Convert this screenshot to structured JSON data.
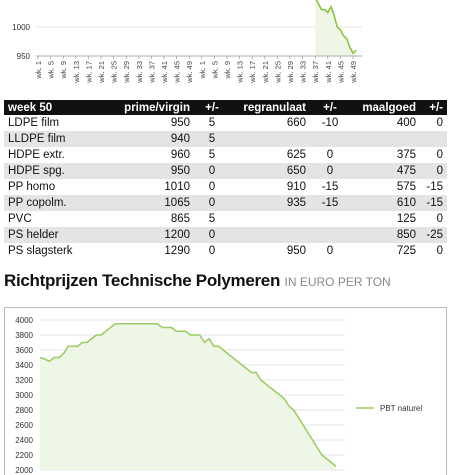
{
  "chart_data": [
    {
      "type": "area",
      "color": "#8cc63f",
      "fill": "#eef6e6",
      "ylim": [
        950,
        1050
      ],
      "yticks": [
        950,
        1000
      ],
      "xlim": [
        1,
        104
      ],
      "xticks": [
        {
          "value": 1,
          "label": "wk. 1"
        },
        {
          "value": 5,
          "label": "wk. 5"
        },
        {
          "value": 9,
          "label": "wk. 9"
        },
        {
          "value": 13,
          "label": "wk. 13"
        },
        {
          "value": 17,
          "label": "wk. 17"
        },
        {
          "value": 21,
          "label": "wk. 21"
        },
        {
          "value": 25,
          "label": "wk. 25"
        },
        {
          "value": 29,
          "label": "wk. 29"
        },
        {
          "value": 33,
          "label": "wk. 33"
        },
        {
          "value": 37,
          "label": "wk. 37"
        },
        {
          "value": 41,
          "label": "wk. 41"
        },
        {
          "value": 45,
          "label": "wk. 45"
        },
        {
          "value": 49,
          "label": "wk. 49"
        },
        {
          "value": 53,
          "label": "wk. 1"
        },
        {
          "value": 57,
          "label": "wk. 5"
        },
        {
          "value": 61,
          "label": "wk. 9"
        },
        {
          "value": 65,
          "label": "wk. 13"
        },
        {
          "value": 69,
          "label": "wk. 17"
        },
        {
          "value": 73,
          "label": "wk. 21"
        },
        {
          "value": 77,
          "label": "wk. 25"
        },
        {
          "value": 81,
          "label": "wk. 29"
        },
        {
          "value": 85,
          "label": "wk. 33"
        },
        {
          "value": 89,
          "label": "wk. 37"
        },
        {
          "value": 93,
          "label": "wk. 41"
        },
        {
          "value": 97,
          "label": "wk. 45"
        },
        {
          "value": 101,
          "label": "wk. 49"
        }
      ],
      "x": [
        89,
        90,
        91,
        92,
        93,
        94,
        95,
        96,
        97,
        98,
        99,
        100,
        101,
        102
      ],
      "values": [
        1050,
        1040,
        1030,
        1030,
        1025,
        1035,
        1020,
        1000,
        995,
        985,
        980,
        965,
        955,
        960
      ]
    },
    {
      "type": "area",
      "ylim": [
        2000,
        4000
      ],
      "yticks": [
        2000,
        2200,
        2400,
        2600,
        2800,
        3000,
        3200,
        3400,
        3600,
        3800,
        4000
      ],
      "grid": true,
      "legend": "right",
      "fill": "#eef6e6",
      "series": [
        {
          "name": "PBT naturel",
          "color": "#9ccc65",
          "values": [
            3500,
            3480,
            3450,
            3500,
            3500,
            3550,
            3650,
            3650,
            3650,
            3700,
            3700,
            3750,
            3800,
            3800,
            3850,
            3900,
            3950,
            3950,
            3950,
            3950,
            3950,
            3950,
            3950,
            3950,
            3950,
            3950,
            3900,
            3900,
            3900,
            3850,
            3850,
            3850,
            3800,
            3800,
            3800,
            3700,
            3750,
            3650,
            3650,
            3600,
            3550,
            3500,
            3450,
            3400,
            3350,
            3300,
            3300,
            3200,
            3150,
            3100,
            3050,
            3000,
            2950,
            2850,
            2800,
            2700,
            2600,
            2500,
            2400,
            2300,
            2200,
            2150,
            2100,
            2050
          ]
        }
      ]
    }
  ],
  "table": {
    "header": [
      "week 50",
      "prime/virgin",
      "+/-",
      "regranulaat",
      "+/-",
      "maalgoed",
      "+/-"
    ],
    "rows": [
      [
        "LDPE film",
        "950",
        "5",
        "660",
        "-10",
        "400",
        "0"
      ],
      [
        "LLDPE film",
        "940",
        "5",
        null,
        null,
        null,
        null
      ],
      [
        "HDPE extr.",
        "960",
        "5",
        "625",
        "0",
        "375",
        "0"
      ],
      [
        "HDPE spg.",
        "950",
        "0",
        "650",
        "0",
        "475",
        "0"
      ],
      [
        "PP homo",
        "1010",
        "0",
        "910",
        "-15",
        "575",
        "-15"
      ],
      [
        "PP copolm.",
        "1065",
        "0",
        "935",
        "-15",
        "610",
        "-15"
      ],
      [
        "PVC",
        "865",
        "5",
        null,
        null,
        "125",
        "0"
      ],
      [
        "PS helder",
        "1200",
        "0",
        null,
        null,
        "850",
        "-25"
      ],
      [
        "PS slagsterk",
        "1290",
        "0",
        "950",
        "0",
        "725",
        "0"
      ]
    ]
  },
  "heading": {
    "title": "Richtprijzen Technische Polymeren",
    "subtitle": "IN EURO PER TON"
  }
}
